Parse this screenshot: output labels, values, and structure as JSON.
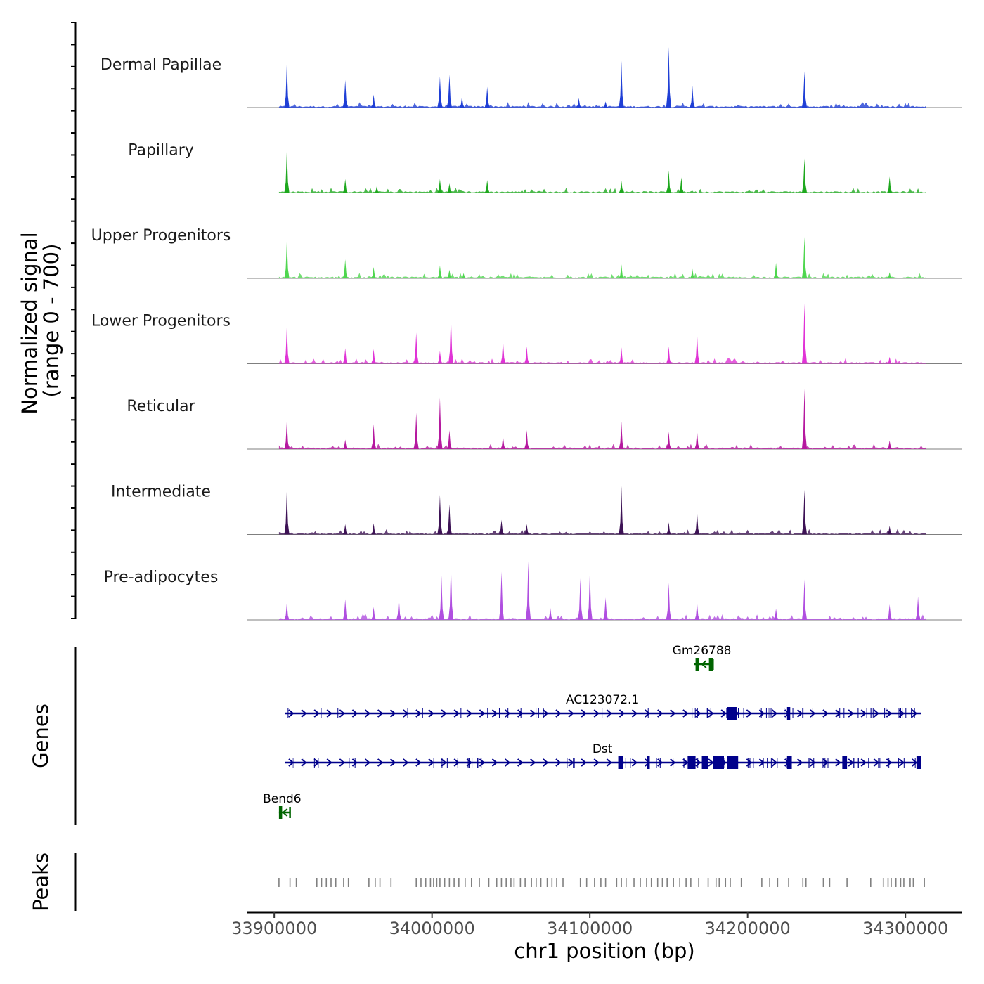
{
  "chart_data": {
    "type": "genome-coverage",
    "x_axis": {
      "label": "chr1 position (bp)",
      "range": [
        33883000,
        34336000
      ],
      "ticks": [
        33900000,
        34000000,
        34100000,
        34200000,
        34300000
      ],
      "tick_labels": [
        "33900000",
        "34000000",
        "34100000",
        "34200000",
        "34300000"
      ]
    },
    "y_axis": {
      "label_line1": "Normalized signal",
      "label_line2": "(range 0 - 700)",
      "range": [
        0,
        700
      ]
    },
    "data_range": [
      33903000,
      34313000
    ],
    "tracks": [
      {
        "name": "Dermal Papillae",
        "color": "#1f3fd6",
        "peaks": [
          [
            33908000,
            520
          ],
          [
            33945000,
            320
          ],
          [
            33963000,
            150
          ],
          [
            34005000,
            360
          ],
          [
            34011000,
            380
          ],
          [
            34019000,
            130
          ],
          [
            34035000,
            240
          ],
          [
            34093000,
            110
          ],
          [
            34110000,
            70
          ],
          [
            34120000,
            540
          ],
          [
            34150000,
            700
          ],
          [
            34165000,
            250
          ],
          [
            34236000,
            420
          ]
        ]
      },
      {
        "name": "Papillary",
        "color": "#1ea81e",
        "peaks": [
          [
            33908000,
            500
          ],
          [
            33945000,
            160
          ],
          [
            33965000,
            80
          ],
          [
            34005000,
            160
          ],
          [
            34011000,
            110
          ],
          [
            34035000,
            150
          ],
          [
            34120000,
            140
          ],
          [
            34150000,
            260
          ],
          [
            34158000,
            180
          ],
          [
            34236000,
            400
          ],
          [
            34290000,
            190
          ]
        ]
      },
      {
        "name": "Upper Progenitors",
        "color": "#4fd64f",
        "peaks": [
          [
            33908000,
            440
          ],
          [
            33945000,
            220
          ],
          [
            33963000,
            130
          ],
          [
            34005000,
            150
          ],
          [
            34011000,
            100
          ],
          [
            34020000,
            60
          ],
          [
            34120000,
            160
          ],
          [
            34165000,
            110
          ],
          [
            34218000,
            180
          ],
          [
            34236000,
            480
          ],
          [
            34290000,
            70
          ]
        ]
      },
      {
        "name": "Lower Progenitors",
        "color": "#e033d6",
        "peaks": [
          [
            33908000,
            440
          ],
          [
            33945000,
            180
          ],
          [
            33963000,
            170
          ],
          [
            33990000,
            360
          ],
          [
            34005000,
            150
          ],
          [
            34012000,
            560
          ],
          [
            34045000,
            270
          ],
          [
            34060000,
            200
          ],
          [
            34120000,
            190
          ],
          [
            34150000,
            200
          ],
          [
            34168000,
            350
          ],
          [
            34236000,
            700
          ],
          [
            34290000,
            80
          ]
        ]
      },
      {
        "name": "Reticular",
        "color": "#b5199f",
        "peaks": [
          [
            33908000,
            330
          ],
          [
            33945000,
            110
          ],
          [
            33963000,
            290
          ],
          [
            33990000,
            420
          ],
          [
            34005000,
            600
          ],
          [
            34011000,
            220
          ],
          [
            34045000,
            150
          ],
          [
            34060000,
            220
          ],
          [
            34120000,
            320
          ],
          [
            34150000,
            200
          ],
          [
            34168000,
            210
          ],
          [
            34236000,
            700
          ],
          [
            34290000,
            100
          ]
        ]
      },
      {
        "name": "Intermediate",
        "color": "#3d1255",
        "peaks": [
          [
            33908000,
            520
          ],
          [
            33945000,
            120
          ],
          [
            33963000,
            130
          ],
          [
            34005000,
            460
          ],
          [
            34011000,
            350
          ],
          [
            34044000,
            170
          ],
          [
            34060000,
            120
          ],
          [
            34120000,
            560
          ],
          [
            34150000,
            140
          ],
          [
            34168000,
            260
          ],
          [
            34236000,
            520
          ],
          [
            34290000,
            100
          ]
        ]
      },
      {
        "name": "Pre-adipocytes",
        "color": "#b04fe0",
        "peaks": [
          [
            33908000,
            200
          ],
          [
            33945000,
            240
          ],
          [
            33963000,
            150
          ],
          [
            33979000,
            260
          ],
          [
            34006000,
            510
          ],
          [
            34012000,
            650
          ],
          [
            34044000,
            560
          ],
          [
            34061000,
            680
          ],
          [
            34075000,
            140
          ],
          [
            34094000,
            480
          ],
          [
            34100000,
            570
          ],
          [
            34110000,
            260
          ],
          [
            34150000,
            430
          ],
          [
            34168000,
            200
          ],
          [
            34218000,
            130
          ],
          [
            34236000,
            470
          ],
          [
            34290000,
            180
          ],
          [
            34308000,
            270
          ]
        ]
      }
    ],
    "genes": [
      {
        "name": "Gm26788",
        "strand": "-",
        "start": 34166000,
        "end": 34178000,
        "color": "#006400",
        "blocks": [
          [
            34167000,
            34169000
          ],
          [
            34175500,
            34178000
          ]
        ]
      },
      {
        "name": "AC123072.1",
        "strand": "+",
        "start": 33907000,
        "end": 34310000,
        "color": "#00008b",
        "blocks": [
          [
            34187000,
            34193000
          ],
          [
            34225000,
            34227000
          ]
        ]
      },
      {
        "name": "Dst",
        "strand": "+",
        "start": 33907000,
        "end": 34310000,
        "color": "#00008b",
        "blocks": [
          [
            34118000,
            34121000
          ],
          [
            34136000,
            34138000
          ],
          [
            34162000,
            34167000
          ],
          [
            34171000,
            34175000
          ],
          [
            34178000,
            34185000
          ],
          [
            34187000,
            34194000
          ],
          [
            34225000,
            34228000
          ],
          [
            34260000,
            34263000
          ],
          [
            34307000,
            34310000
          ]
        ]
      },
      {
        "name": "Bend6",
        "strand": "-",
        "start": 33903000,
        "end": 33910000,
        "color": "#006400",
        "blocks": [
          [
            33903000,
            33905000
          ]
        ]
      }
    ],
    "peaks_track": {
      "color": "#808080",
      "positions": [
        33903000,
        33910000,
        33914000,
        33927000,
        33930000,
        33933000,
        33936000,
        33939000,
        33944000,
        33947000,
        33960000,
        33964000,
        33967000,
        33974000,
        33990000,
        33993000,
        33996000,
        33999000,
        34001000,
        34003000,
        34005000,
        34008000,
        34011000,
        34014000,
        34017000,
        34021000,
        34025000,
        34030000,
        34036000,
        34041000,
        34044000,
        34047000,
        34050000,
        34052000,
        34056000,
        34059000,
        34063000,
        34066000,
        34069000,
        34073000,
        34076000,
        34079000,
        34083000,
        34094000,
        34098000,
        34103000,
        34107000,
        34110000,
        34117000,
        34120000,
        34123000,
        34128000,
        34132000,
        34136000,
        34139000,
        34143000,
        34146000,
        34149000,
        34153000,
        34157000,
        34161000,
        34164000,
        34169000,
        34175000,
        34180000,
        34182000,
        34186000,
        34189000,
        34196000,
        34209000,
        34214000,
        34219000,
        34226000,
        34235000,
        34237000,
        34248000,
        34252000,
        34263000,
        34278000,
        34286000,
        34289000,
        34291000,
        34294000,
        34297000,
        34299000,
        34303000,
        34305000,
        34312000
      ]
    },
    "side_labels": {
      "genes": "Genes",
      "peaks": "Peaks"
    }
  }
}
